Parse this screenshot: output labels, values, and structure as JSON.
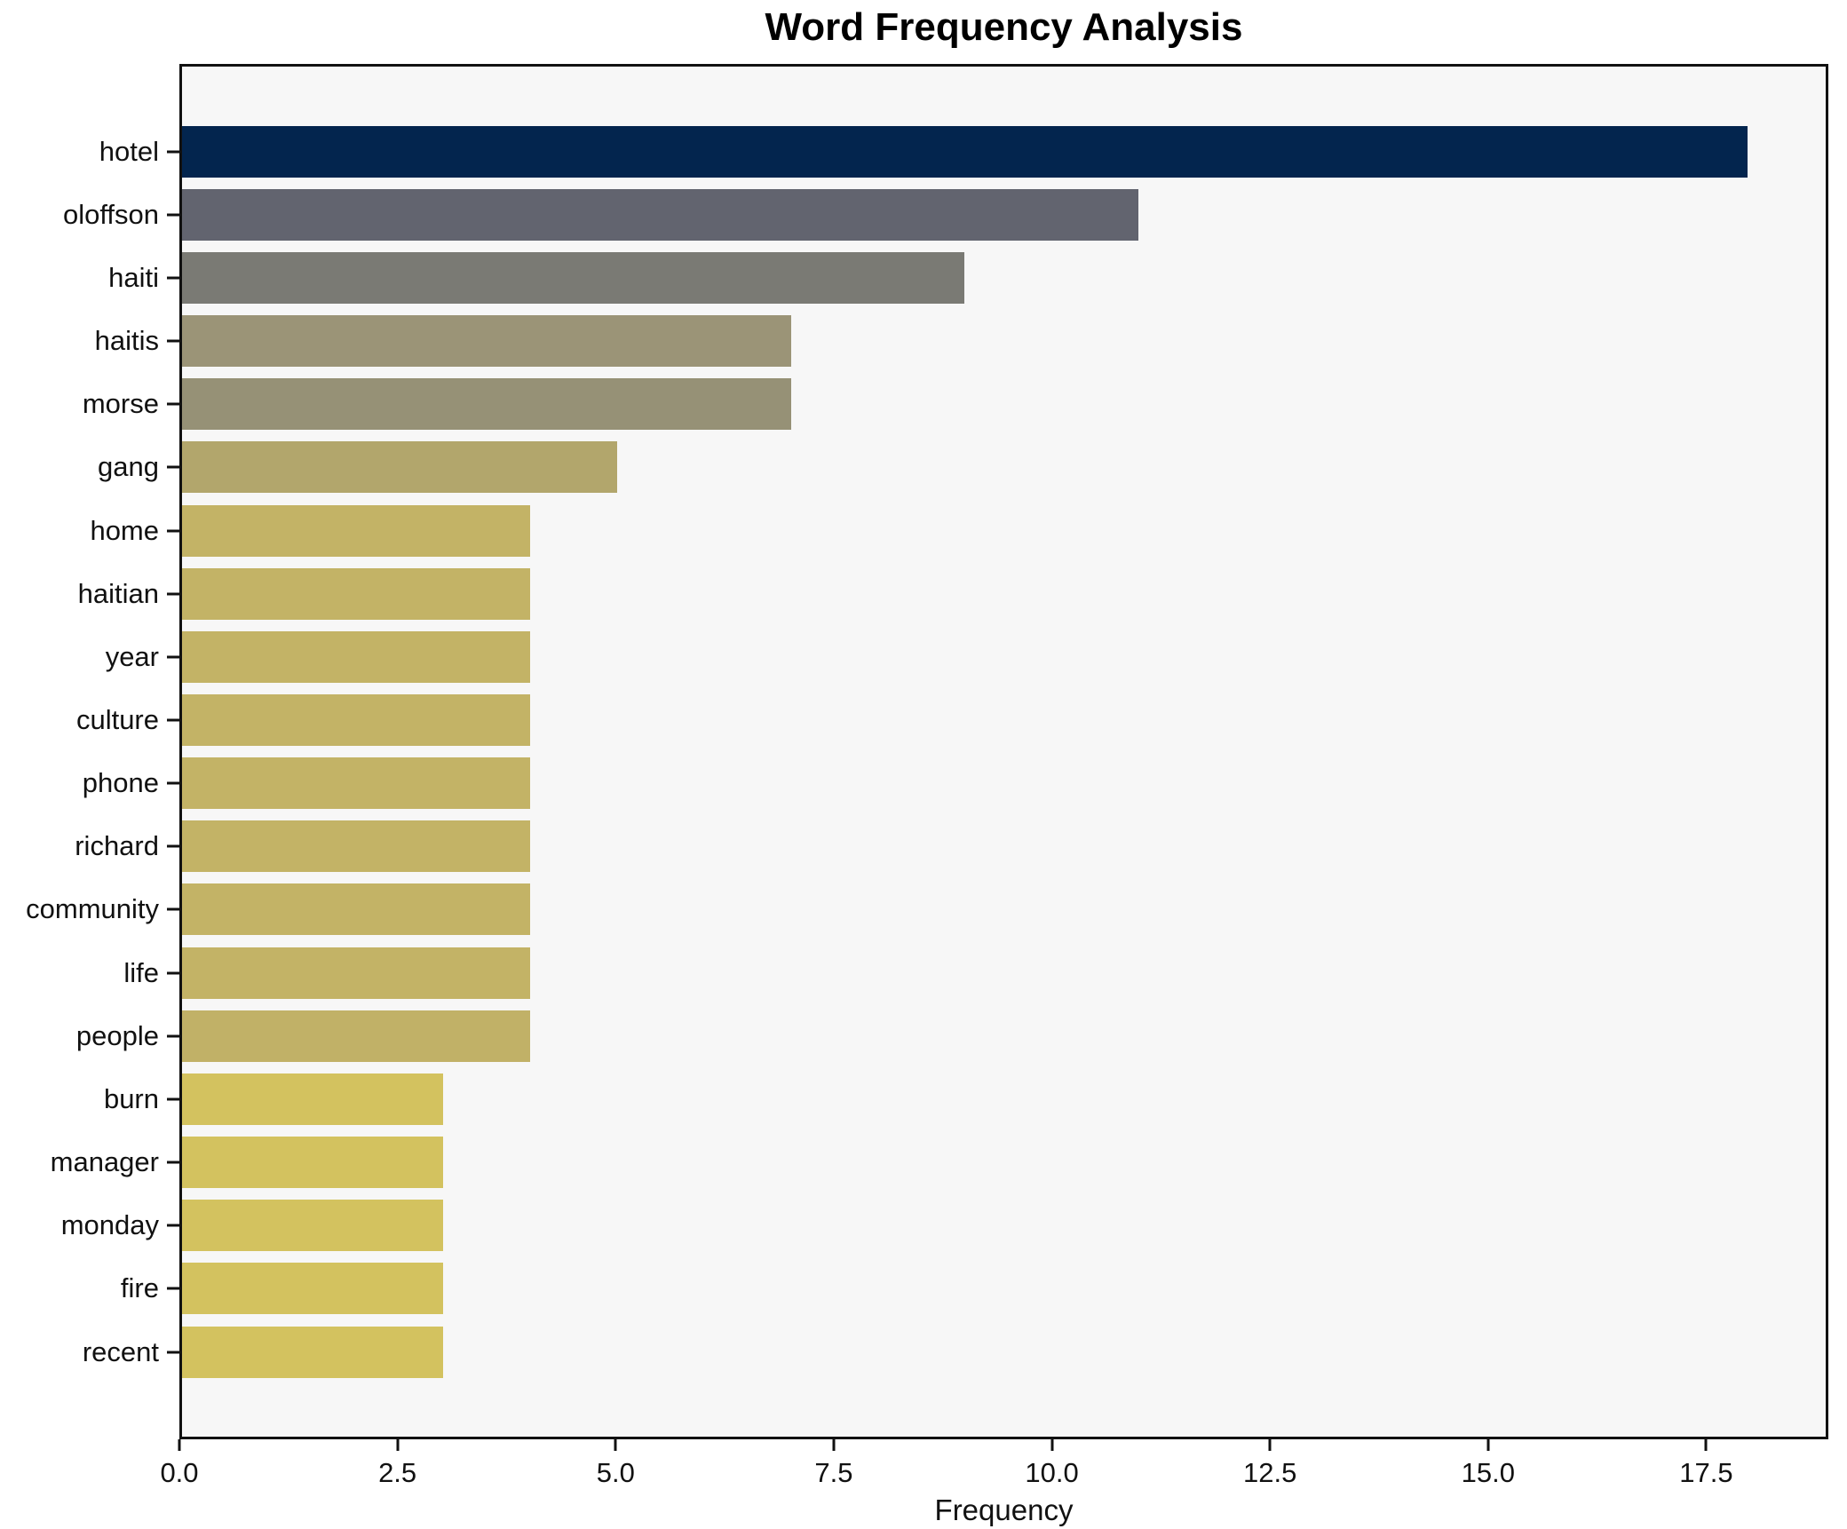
{
  "chart_data": {
    "type": "bar",
    "orientation": "horizontal",
    "title": "Word Frequency Analysis",
    "xlabel": "Frequency",
    "ylabel": "",
    "categories": [
      "hotel",
      "oloffson",
      "haiti",
      "haitis",
      "morse",
      "gang",
      "home",
      "haitian",
      "year",
      "culture",
      "phone",
      "richard",
      "community",
      "life",
      "people",
      "burn",
      "manager",
      "monday",
      "fire",
      "recent"
    ],
    "values": [
      18,
      11,
      9,
      7,
      7,
      5,
      4,
      4,
      4,
      4,
      4,
      4,
      4,
      4,
      4,
      3,
      3,
      3,
      3,
      3
    ],
    "bar_colors": [
      "#03254e",
      "#62646f",
      "#7a7a74",
      "#9b9477",
      "#969176",
      "#b2a66c",
      "#c3b366",
      "#c3b366",
      "#c3b366",
      "#c3b366",
      "#c3b366",
      "#c3b366",
      "#c3b366",
      "#c3b366",
      "#c1b167",
      "#d3c25f",
      "#d3c25f",
      "#d3c25f",
      "#d3c25f",
      "#d3c25f"
    ],
    "xlim": [
      0,
      18.9
    ],
    "xticks": [
      0.0,
      2.5,
      5.0,
      7.5,
      10.0,
      12.5,
      15.0,
      17.5
    ],
    "xtick_labels": [
      "0.0",
      "2.5",
      "5.0",
      "7.5",
      "10.0",
      "12.5",
      "15.0",
      "17.5"
    ],
    "grid": false,
    "legend": null,
    "plot_background": "#f7f7f7",
    "frame_color": "#111111"
  }
}
